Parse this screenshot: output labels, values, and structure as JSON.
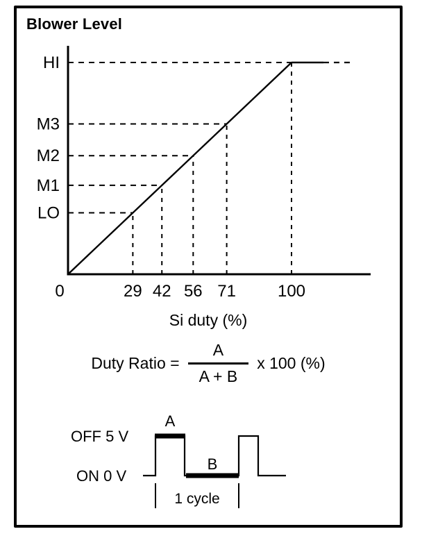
{
  "figure": {
    "title": "Blower Level",
    "x_axis_label": "Si duty (%)"
  },
  "chart_data": {
    "type": "line",
    "title": "Blower Level",
    "xlabel": "Si duty (%)",
    "ylabel": "Blower Level",
    "x_ticks": [
      0,
      29,
      42,
      56,
      71,
      100
    ],
    "y_ticks": [
      "LO",
      "M1",
      "M2",
      "M3",
      "HI"
    ],
    "points": [
      {
        "level": "LO",
        "duty": 29
      },
      {
        "level": "M1",
        "duty": 42
      },
      {
        "level": "M2",
        "duty": 56
      },
      {
        "level": "M3",
        "duty": 71
      },
      {
        "level": "HI",
        "duty": 100
      }
    ],
    "line_description": "straight line from origin (0) rising to HI at 100% duty, then flat at HI",
    "xlim": [
      0,
      135
    ],
    "grid": "dashed guide lines from each level to the line and down to the duty axis",
    "legend": "none"
  },
  "formula": {
    "lhs": "Duty Ratio =",
    "numerator": "A",
    "denominator": "A + B",
    "rhs": "x 100 (%)"
  },
  "waveform": {
    "high_label": "OFF 5 V",
    "low_label": "ON 0 V",
    "a_label": "A",
    "b_label": "B",
    "cycle_label": "1 cycle"
  },
  "colors": {
    "ink": "#000000",
    "background": "#ffffff"
  }
}
